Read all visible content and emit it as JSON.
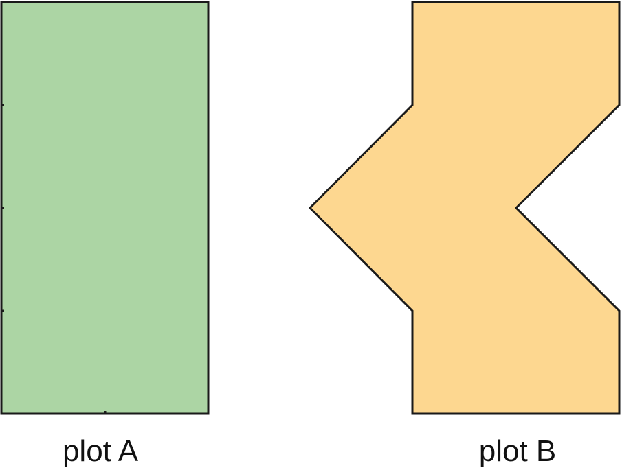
{
  "plots": [
    {
      "id": "A",
      "label": "plot A",
      "fill": "#acd5a4"
    },
    {
      "id": "B",
      "label": "plot B",
      "fill": "#fdd790"
    }
  ],
  "stroke_color": "#1a1a1a"
}
